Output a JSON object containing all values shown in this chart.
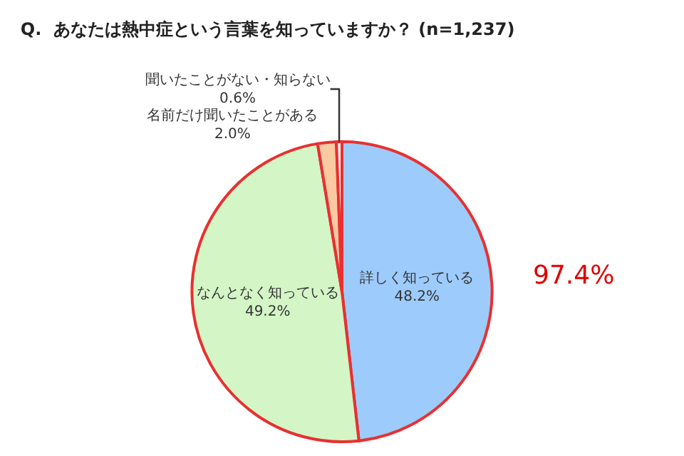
{
  "chart_data": {
    "type": "pie",
    "title": "Q.  あなたは熱中症という言葉を知っていますか？ (n=1,237)",
    "categories": [
      "詳しく知っている",
      "なんとなく知っている",
      "名前だけ聞いたことがある",
      "聞いたことがない・知らない"
    ],
    "values": [
      48.2,
      49.2,
      2.0,
      0.6
    ],
    "colors": [
      "#9dcbfb",
      "#d4f5c6",
      "#fbc9a2",
      "#f2f2f2"
    ],
    "value_labels": [
      "48.2%",
      "49.2%",
      "2.0%",
      "0.6%"
    ],
    "annotations": [
      "97.4%"
    ],
    "legend": false
  }
}
